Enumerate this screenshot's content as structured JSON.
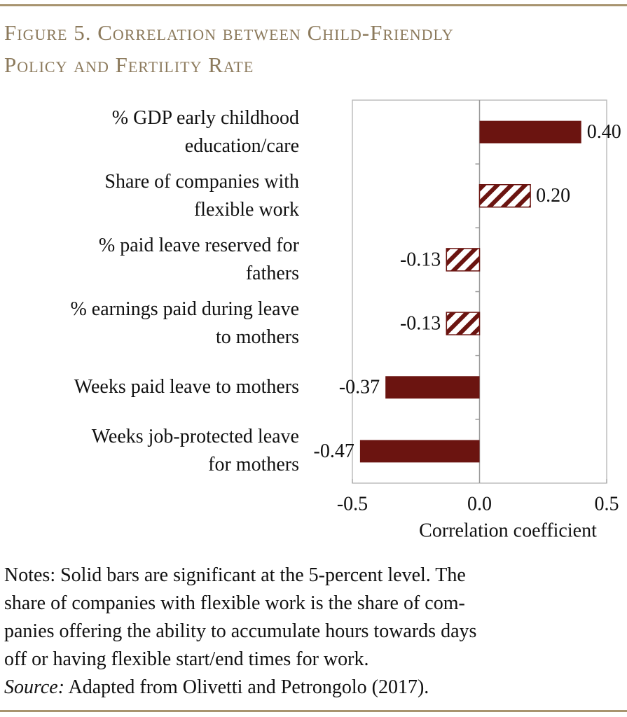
{
  "chart_data": {
    "type": "hbar",
    "title": "Figure 5. Correlation between Child-Friendly\nPolicy and Fertility Rate",
    "categories": [
      "% GDP early childhood\neducation/care",
      "Share of companies with\nflexible work",
      "% paid leave reserved for\nfathers",
      "% earnings paid during leave\nto mothers",
      "Weeks paid leave to mothers",
      "Weeks job-protected leave\nfor mothers"
    ],
    "values": [
      0.4,
      0.2,
      -0.13,
      -0.13,
      -0.37,
      -0.47
    ],
    "value_labels": [
      "0.40",
      "0.20",
      "-0.13",
      "-0.13",
      "-0.37",
      "-0.47"
    ],
    "significant": [
      true,
      false,
      false,
      false,
      true,
      true
    ],
    "color": "#6b1410",
    "xlim": [
      -0.5,
      0.5
    ],
    "xticks": [
      -0.5,
      {
        "value": 0,
        "label": "0.0"
      },
      0.5
    ],
    "xlabel": "Correlation coefficient",
    "grid": false,
    "notes": "Notes: Solid bars are significant at the 5-percent level. The\nshare of companies with flexible work is the share of com-\npanies offering the ability to accumulate hours towards days\noff or having flexible start/end times for work.",
    "source_label": "Source:",
    "source_text": "Adapted from Olivetti and Petrongolo (2017)."
  }
}
